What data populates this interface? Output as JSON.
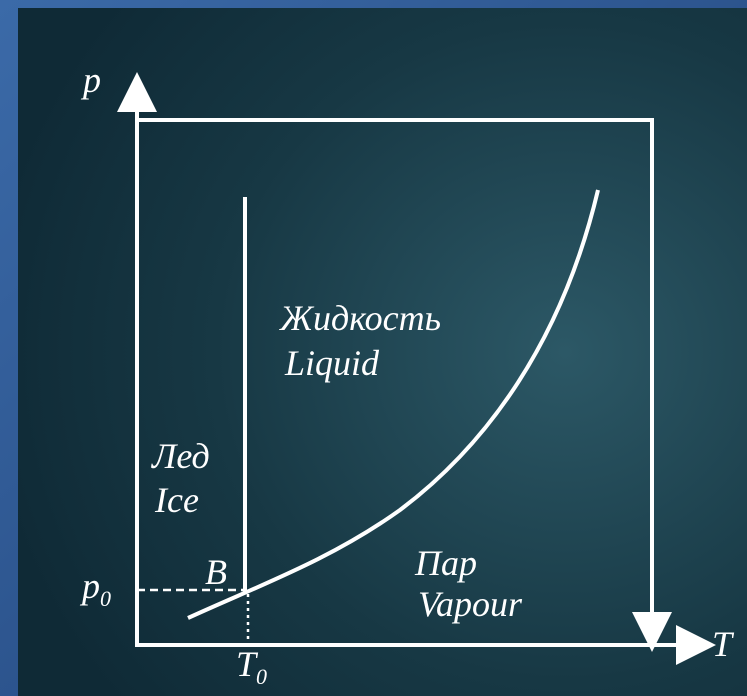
{
  "axes": {
    "y": "p",
    "x": "T"
  },
  "point": "B",
  "p0": {
    "base": "p",
    "sub": "0"
  },
  "T0": {
    "base": "T",
    "sub": "0"
  },
  "regions": {
    "liquid": {
      "ru": "Жидкость",
      "en": "Liquid"
    },
    "ice": {
      "ru": "Лед",
      "en": "Ice"
    },
    "vapour": {
      "ru": "Пар",
      "en": "Vapour"
    }
  }
}
